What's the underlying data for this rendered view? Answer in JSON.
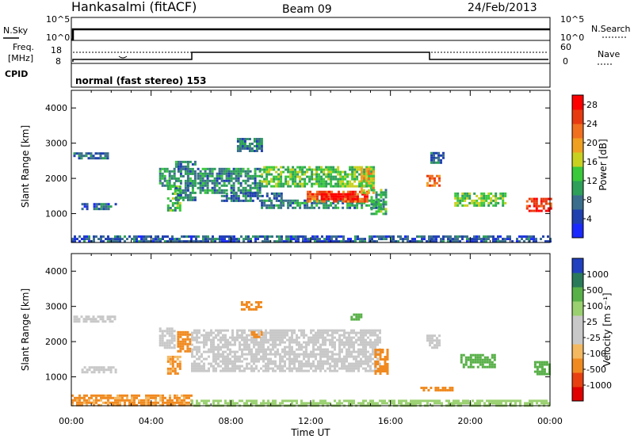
{
  "header": {
    "title": "Hankasalmi (fitACF)",
    "beam": "Beam 09",
    "date": "24/Feb/2013"
  },
  "sky_panel": {
    "left_label": "N.Sky",
    "right_label": "N.Search",
    "left_ticks": [
      "10^5",
      "10^0"
    ],
    "right_ticks": [
      "10^5",
      "10^0"
    ]
  },
  "freq_panel": {
    "left_label_1": "Freq.",
    "left_label_2": "[MHz]",
    "left_ticks": [
      "18",
      "8"
    ],
    "right_label": "Nave",
    "right_ticks": [
      "60",
      "0"
    ]
  },
  "cpid_panel": {
    "label": "CPID",
    "text": "normal (fast stereo) 153"
  },
  "colors": {
    "power_scale": [
      "#1a2aff",
      "#2040b0",
      "#3a6e8c",
      "#2ea05a",
      "#39c93b",
      "#c8d020",
      "#f0a020",
      "#f07020",
      "#e83a10",
      "#ff0000"
    ],
    "velocity_scale": [
      "#e00000",
      "#e84010",
      "#f08a20",
      "#f4b860",
      "#c8c8c8",
      "#c8c8c8",
      "#9ad070",
      "#58b048",
      "#2a7a5a",
      "#2040c0"
    ]
  },
  "chart_data": [
    {
      "type": "heatmap",
      "name": "power",
      "ylabel": "Slant Range [km]",
      "ylim": [
        180,
        4500
      ],
      "xlim": [
        0,
        24
      ],
      "yticks": [
        "1000",
        "2000",
        "3000",
        "4000"
      ],
      "colorbar": {
        "label": "Power [dB]",
        "ticks": [
          "4",
          "8",
          "12",
          "16",
          "20",
          "24",
          "28"
        ],
        "range": [
          0,
          30
        ]
      },
      "regions": [
        {
          "t0": 0.1,
          "t1": 1.8,
          "r0": 2580,
          "r1": 2740,
          "v": 7
        },
        {
          "t0": 0.5,
          "t1": 2.2,
          "r0": 1150,
          "r1": 1300,
          "v": 6
        },
        {
          "t0": 4.4,
          "t1": 5.2,
          "r0": 1800,
          "r1": 2300,
          "v": 10
        },
        {
          "t0": 4.8,
          "t1": 5.5,
          "r0": 1100,
          "r1": 1800,
          "v": 12
        },
        {
          "t0": 5.2,
          "t1": 6.2,
          "r0": 1400,
          "r1": 2500,
          "v": 9
        },
        {
          "t0": 6.3,
          "t1": 9.5,
          "r0": 1600,
          "r1": 2300,
          "v": 9
        },
        {
          "t0": 8.3,
          "t1": 9.6,
          "r0": 2800,
          "r1": 3150,
          "v": 8
        },
        {
          "t0": 7.5,
          "t1": 10.5,
          "r0": 1350,
          "r1": 1600,
          "v": 7
        },
        {
          "t0": 9.5,
          "t1": 15.5,
          "r0": 1150,
          "r1": 1400,
          "v": 9
        },
        {
          "t0": 9.5,
          "t1": 15.2,
          "r0": 1750,
          "r1": 2350,
          "v": 13
        },
        {
          "t0": 11.8,
          "t1": 14.8,
          "r0": 1350,
          "r1": 1650,
          "v": 24
        },
        {
          "t0": 12.5,
          "t1": 14.3,
          "r0": 1420,
          "r1": 1580,
          "v": 29
        },
        {
          "t0": 14.5,
          "t1": 15.2,
          "r0": 1600,
          "r1": 2300,
          "v": 18
        },
        {
          "t0": 15.0,
          "t1": 15.8,
          "r0": 1000,
          "r1": 1700,
          "v": 12
        },
        {
          "t0": 17.8,
          "t1": 18.5,
          "r0": 1800,
          "r1": 2100,
          "v": 22
        },
        {
          "t0": 18.0,
          "t1": 18.6,
          "r0": 2450,
          "r1": 2750,
          "v": 7
        },
        {
          "t0": 19.2,
          "t1": 21.8,
          "r0": 1250,
          "r1": 1600,
          "v": 14
        },
        {
          "t0": 22.8,
          "t1": 24.0,
          "r0": 1050,
          "r1": 1450,
          "v": 26
        },
        {
          "t0": 0.0,
          "t1": 24.0,
          "r0": 200,
          "r1": 380,
          "v": 6
        }
      ]
    },
    {
      "type": "heatmap",
      "name": "velocity",
      "ylabel": "Slant Range [km]",
      "xlabel": "Time UT",
      "ylim": [
        180,
        4500
      ],
      "xlim": [
        0,
        24
      ],
      "yticks": [
        "1000",
        "2000",
        "3000",
        "4000"
      ],
      "xticks": [
        "00:00",
        "04:00",
        "08:00",
        "12:00",
        "16:00",
        "20:00",
        "00:00"
      ],
      "colorbar": {
        "label": "Velocity [m s⁻¹]",
        "ticks": [
          "1000",
          "500",
          "100",
          "25",
          "-25",
          "-100",
          "-500",
          "-1000"
        ],
        "range": [
          -1000,
          1000
        ]
      },
      "regions": [
        {
          "t0": 0.1,
          "t1": 2.2,
          "r0": 2580,
          "r1": 2740,
          "v": 0
        },
        {
          "t0": 0.5,
          "t1": 2.2,
          "r0": 1150,
          "r1": 1300,
          "v": 0
        },
        {
          "t0": 4.4,
          "t1": 5.2,
          "r0": 1800,
          "r1": 2400,
          "v": 0
        },
        {
          "t0": 5.3,
          "t1": 5.9,
          "r0": 1700,
          "r1": 2300,
          "v": -300
        },
        {
          "t0": 4.8,
          "t1": 5.5,
          "r0": 1100,
          "r1": 1600,
          "v": -100
        },
        {
          "t0": 6.0,
          "t1": 15.5,
          "r0": 1200,
          "r1": 2350,
          "v": 0
        },
        {
          "t0": 8.5,
          "t1": 9.5,
          "r0": 2900,
          "r1": 3150,
          "v": -300
        },
        {
          "t0": 9.0,
          "t1": 9.5,
          "r0": 2150,
          "r1": 2300,
          "v": -300
        },
        {
          "t0": 15.2,
          "t1": 15.8,
          "r0": 1100,
          "r1": 1800,
          "v": -300
        },
        {
          "t0": 14.0,
          "t1": 14.5,
          "r0": 2600,
          "r1": 2800,
          "v": 150
        },
        {
          "t0": 17.8,
          "t1": 18.5,
          "r0": 1800,
          "r1": 2200,
          "v": 0
        },
        {
          "t0": 17.5,
          "t1": 19.2,
          "r0": 600,
          "r1": 720,
          "v": -200
        },
        {
          "t0": 19.5,
          "t1": 21.2,
          "r0": 1300,
          "r1": 1650,
          "v": 300
        },
        {
          "t0": 23.2,
          "t1": 24.0,
          "r0": 1050,
          "r1": 1450,
          "v": 150
        },
        {
          "t0": 0.0,
          "t1": 6.0,
          "r0": 200,
          "r1": 500,
          "v": -120
        },
        {
          "t0": 6.0,
          "t1": 24.0,
          "r0": 200,
          "r1": 350,
          "v": 60
        }
      ]
    }
  ]
}
